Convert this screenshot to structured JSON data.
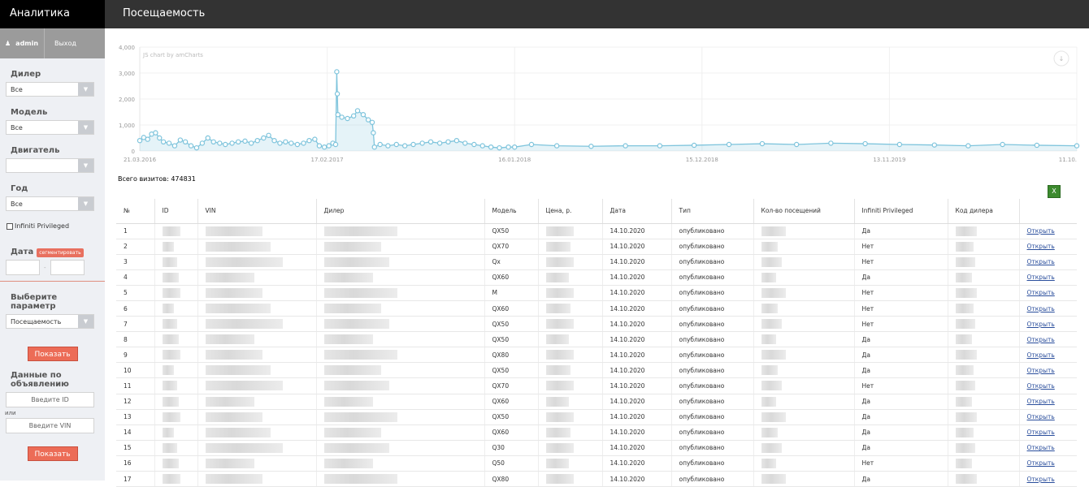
{
  "sidebar": {
    "brand": "Аналитика",
    "user": "admin",
    "logout": "Выход",
    "dealer_label": "Дилер",
    "dealer_value": "Все",
    "model_label": "Модель",
    "model_value": "Все",
    "engine_label": "Двигатель",
    "engine_value": "",
    "year_label": "Год",
    "year_value": "Все",
    "privileged_label": "Infiniti Privileged",
    "privileged_checked": false,
    "date_label": "Дата",
    "segment_button": "сегментировать",
    "date_sep": "-",
    "param_label": "Выберите параметр",
    "param_value": "Посещаемость",
    "show_button": "Показать",
    "ad_label": "Данные по объявлению",
    "id_placeholder": "Введите ID",
    "or": "или",
    "vin_placeholder": "Введите VIN",
    "show_button2": "Показать"
  },
  "header": {
    "title": "Посещаемость"
  },
  "chart_data": {
    "type": "area",
    "credit": "JS chart by amCharts",
    "ylim": [
      0,
      4000
    ],
    "yticks": [
      "0",
      "1,000",
      "2,000",
      "3,000",
      "4,000"
    ],
    "xticks": [
      "21.03.2016",
      "17.02.2017",
      "16.01.2018",
      "15.12.2018",
      "13.11.2019",
      "11.10."
    ],
    "xtick_dates": [
      "2016-03-21",
      "2017-02-17",
      "2018-01-16",
      "2018-12-15",
      "2019-11-13",
      "2020-10-11"
    ],
    "color": "#7ec4dc",
    "grid": true,
    "points": [
      [
        "2016-03-21",
        400
      ],
      [
        "2016-03-28",
        520
      ],
      [
        "2016-04-04",
        450
      ],
      [
        "2016-04-11",
        650
      ],
      [
        "2016-04-18",
        700
      ],
      [
        "2016-04-25",
        500
      ],
      [
        "2016-05-02",
        350
      ],
      [
        "2016-05-12",
        300
      ],
      [
        "2016-05-22",
        200
      ],
      [
        "2016-06-01",
        420
      ],
      [
        "2016-06-10",
        350
      ],
      [
        "2016-06-20",
        200
      ],
      [
        "2016-06-30",
        120
      ],
      [
        "2016-07-10",
        300
      ],
      [
        "2016-07-20",
        500
      ],
      [
        "2016-07-30",
        350
      ],
      [
        "2016-08-10",
        300
      ],
      [
        "2016-08-20",
        250
      ],
      [
        "2016-09-01",
        300
      ],
      [
        "2016-09-12",
        350
      ],
      [
        "2016-09-24",
        380
      ],
      [
        "2016-10-05",
        300
      ],
      [
        "2016-10-16",
        400
      ],
      [
        "2016-10-27",
        500
      ],
      [
        "2016-11-05",
        600
      ],
      [
        "2016-11-15",
        400
      ],
      [
        "2016-11-25",
        300
      ],
      [
        "2016-12-05",
        350
      ],
      [
        "2016-12-15",
        300
      ],
      [
        "2016-12-26",
        250
      ],
      [
        "2017-01-06",
        300
      ],
      [
        "2017-01-16",
        400
      ],
      [
        "2017-01-26",
        450
      ],
      [
        "2017-02-03",
        200
      ],
      [
        "2017-02-12",
        150
      ],
      [
        "2017-02-20",
        200
      ],
      [
        "2017-02-27",
        300
      ],
      [
        "2017-03-04",
        250
      ],
      [
        "2017-03-06",
        3050
      ],
      [
        "2017-03-07",
        2200
      ],
      [
        "2017-03-08",
        1400
      ],
      [
        "2017-03-15",
        1300
      ],
      [
        "2017-03-25",
        1250
      ],
      [
        "2017-04-05",
        1350
      ],
      [
        "2017-04-12",
        1550
      ],
      [
        "2017-04-22",
        1400
      ],
      [
        "2017-05-01",
        1200
      ],
      [
        "2017-05-08",
        1100
      ],
      [
        "2017-05-10",
        700
      ],
      [
        "2017-05-12",
        150
      ],
      [
        "2017-05-22",
        250
      ],
      [
        "2017-06-05",
        200
      ],
      [
        "2017-06-20",
        250
      ],
      [
        "2017-07-05",
        200
      ],
      [
        "2017-07-20",
        250
      ],
      [
        "2017-08-05",
        300
      ],
      [
        "2017-08-20",
        350
      ],
      [
        "2017-09-05",
        300
      ],
      [
        "2017-09-20",
        350
      ],
      [
        "2017-10-05",
        400
      ],
      [
        "2017-10-20",
        300
      ],
      [
        "2017-11-05",
        250
      ],
      [
        "2017-11-20",
        200
      ],
      [
        "2017-12-05",
        150
      ],
      [
        "2017-12-20",
        120
      ],
      [
        "2018-01-05",
        150
      ],
      [
        "2018-01-16",
        150
      ],
      [
        "2018-02-15",
        250
      ],
      [
        "2018-04-01",
        200
      ],
      [
        "2018-06-01",
        180
      ],
      [
        "2018-08-01",
        200
      ],
      [
        "2018-10-01",
        200
      ],
      [
        "2018-12-01",
        220
      ],
      [
        "2019-02-01",
        250
      ],
      [
        "2019-04-01",
        280
      ],
      [
        "2019-06-01",
        250
      ],
      [
        "2019-08-01",
        300
      ],
      [
        "2019-10-01",
        280
      ],
      [
        "2019-12-01",
        250
      ],
      [
        "2020-02-01",
        230
      ],
      [
        "2020-04-01",
        200
      ],
      [
        "2020-06-01",
        250
      ],
      [
        "2020-08-01",
        220
      ],
      [
        "2020-10-11",
        200
      ]
    ]
  },
  "total": "Всего визитов: 474831",
  "table": {
    "headers": [
      "№",
      "ID",
      "VIN",
      "Дилер",
      "Модель",
      "Цена, р.",
      "Дата",
      "Тип",
      "Кол-во посещений",
      "Infiniti Privileged",
      "Код дилера",
      ""
    ],
    "rows": [
      [
        "1",
        "QX50",
        "14.10.2020",
        "опубликовано",
        "Да"
      ],
      [
        "2",
        "QX70",
        "14.10.2020",
        "опубликовано",
        "Нет"
      ],
      [
        "3",
        "Qx",
        "14.10.2020",
        "опубликовано",
        "Нет"
      ],
      [
        "4",
        "QX60",
        "14.10.2020",
        "опубликовано",
        "Да"
      ],
      [
        "5",
        "M",
        "14.10.2020",
        "опубликовано",
        "Нет"
      ],
      [
        "6",
        "QX60",
        "14.10.2020",
        "опубликовано",
        "Нет"
      ],
      [
        "7",
        "QX50",
        "14.10.2020",
        "опубликовано",
        "Нет"
      ],
      [
        "8",
        "QX50",
        "14.10.2020",
        "опубликовано",
        "Да"
      ],
      [
        "9",
        "QX80",
        "14.10.2020",
        "опубликовано",
        "Да"
      ],
      [
        "10",
        "QX50",
        "14.10.2020",
        "опубликовано",
        "Да"
      ],
      [
        "11",
        "QX70",
        "14.10.2020",
        "опубликовано",
        "Нет"
      ],
      [
        "12",
        "QX60",
        "14.10.2020",
        "опубликовано",
        "Да"
      ],
      [
        "13",
        "QX50",
        "14.10.2020",
        "опубликовано",
        "Да"
      ],
      [
        "14",
        "QX60",
        "14.10.2020",
        "опубликовано",
        "Да"
      ],
      [
        "15",
        "Q30",
        "14.10.2020",
        "опубликовано",
        "Да"
      ],
      [
        "16",
        "Q50",
        "14.10.2020",
        "опубликовано",
        "Нет"
      ],
      [
        "17",
        "QX80",
        "14.10.2020",
        "опубликовано",
        "Да"
      ]
    ],
    "open_link": "Открыть"
  }
}
